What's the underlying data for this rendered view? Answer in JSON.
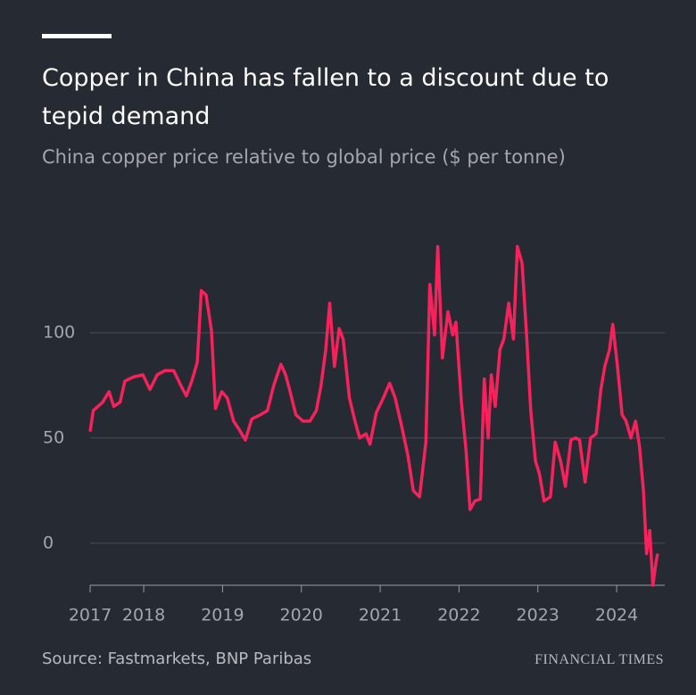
{
  "chart_data": {
    "type": "line",
    "title": "Copper in China has fallen to a discount due to tepid demand",
    "subtitle": "China copper price relative to global price ($ per tonne)",
    "source": "Source: Fastmarkets, BNP Paribas",
    "brand": "FINANCIAL TIMES",
    "color": "#f5225c",
    "grid": true,
    "x": [
      2017.32,
      2017.36,
      2017.48,
      2017.56,
      2017.62,
      2017.7,
      2017.76,
      2017.87,
      2017.99,
      2018.08,
      2018.17,
      2018.27,
      2018.38,
      2018.47,
      2018.54,
      2018.61,
      2018.68,
      2018.73,
      2018.79,
      2018.86,
      2018.91,
      2018.99,
      2019.06,
      2019.14,
      2019.21,
      2019.29,
      2019.37,
      2019.48,
      2019.57,
      2019.65,
      2019.74,
      2019.8,
      2019.85,
      2019.93,
      2020.02,
      2020.11,
      2020.19,
      2020.25,
      2020.31,
      2020.36,
      2020.42,
      2020.48,
      2020.53,
      2020.61,
      2020.68,
      2020.74,
      2020.82,
      2020.87,
      2020.95,
      2021.04,
      2021.12,
      2021.19,
      2021.27,
      2021.35,
      2021.42,
      2021.5,
      2021.58,
      2021.63,
      2021.69,
      2021.73,
      2021.79,
      2021.86,
      2021.92,
      2021.96,
      2022.03,
      2022.09,
      2022.14,
      2022.2,
      2022.27,
      2022.32,
      2022.37,
      2022.41,
      2022.46,
      2022.52,
      2022.57,
      2022.63,
      2022.69,
      2022.74,
      2022.8,
      2022.86,
      2022.91,
      2022.97,
      2023.02,
      2023.08,
      2023.16,
      2023.22,
      2023.29,
      2023.35,
      2023.42,
      2023.48,
      2023.53,
      2023.6,
      2023.67,
      2023.74,
      2023.8,
      2023.85,
      2023.91,
      2023.95,
      2024.01,
      2024.07,
      2024.12,
      2024.18,
      2024.24,
      2024.29,
      2024.34,
      2024.38,
      2024.42,
      2024.46,
      2024.5,
      2024.52
    ],
    "values": [
      53,
      63,
      67,
      72,
      65,
      67,
      77,
      79,
      80,
      73,
      80,
      82,
      82,
      75,
      70,
      77,
      86,
      120,
      118,
      101,
      64,
      72,
      69,
      58,
      54,
      49,
      59,
      61,
      63,
      75,
      85,
      80,
      73,
      61,
      58,
      58,
      63,
      75,
      92,
      114,
      84,
      102,
      97,
      69,
      58,
      50,
      52,
      47,
      62,
      69,
      76,
      69,
      56,
      42,
      25,
      22,
      48,
      123,
      99,
      141,
      88,
      110,
      99,
      105,
      67,
      44,
      16,
      20,
      21,
      78,
      50,
      80,
      65,
      92,
      97,
      114,
      97,
      141,
      133,
      97,
      63,
      39,
      33,
      20,
      22,
      48,
      39,
      27,
      49,
      50,
      49,
      29,
      50,
      52,
      73,
      84,
      92,
      104,
      84,
      61,
      58,
      50,
      58,
      46,
      25,
      -5,
      6,
      -20,
      -9,
      -5
    ],
    "xlim": [
      2017.32,
      2024.52
    ],
    "xticks": [
      {
        "value": 2017.32,
        "label": "2017"
      },
      2018,
      2019,
      2020,
      2021,
      2022,
      2023,
      2024
    ],
    "ylim": [
      -20,
      150
    ],
    "yticks": [
      0,
      50,
      100
    ]
  }
}
